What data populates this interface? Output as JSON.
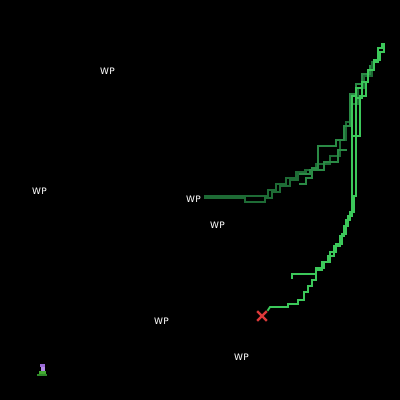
{
  "map": {
    "background": "#000000",
    "waypoint_color": "#ffffff",
    "waypoints": [
      {
        "id": "wp-1",
        "label": "WP"
      },
      {
        "id": "wp-2",
        "label": "WP"
      },
      {
        "id": "wp-3",
        "label": "WP"
      },
      {
        "id": "wp-4",
        "label": "WP"
      },
      {
        "id": "wp-5",
        "label": "WP"
      },
      {
        "id": "wp-6",
        "label": "WP"
      }
    ],
    "trails": {
      "dark_green": "#1e6b35",
      "mid_green": "#2a8a45",
      "bright_green": "#3cc85a"
    },
    "markers": {
      "x_marker": {
        "icon": "x-marker-icon",
        "color": "#e03a3a"
      },
      "player": {
        "icon": "player-sprite-icon",
        "color": "#9a6ad6",
        "base_color": "#44aa33"
      }
    }
  }
}
